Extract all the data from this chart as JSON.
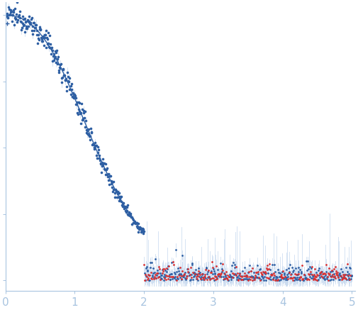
{
  "title": "",
  "xlim": [
    0,
    5.05
  ],
  "background_color": "#ffffff",
  "spine_color": "#a8c4e0",
  "tick_color": "#a8c4e0",
  "tick_label_color": "#a8c4e0",
  "dot_color_blue": "#2e5fa3",
  "dot_color_red": "#d93030",
  "errorbar_color": "#c5d8ee",
  "curve_color": "#2e5fa3",
  "x_ticks": [
    0,
    1,
    2,
    3,
    4,
    5
  ],
  "seed": 12345,
  "I0": 10000,
  "q_transition": 2.0,
  "figsize": [
    5.05,
    4.37
  ],
  "dpi": 100
}
